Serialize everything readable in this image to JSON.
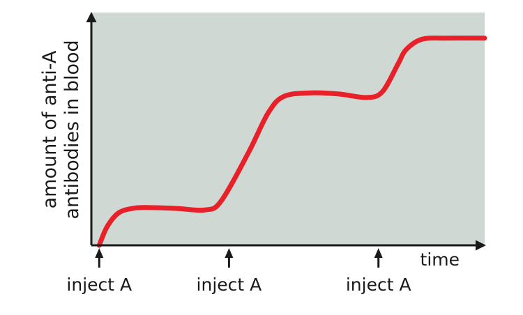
{
  "colors": {
    "plot_bg": "#cfd8d3",
    "curve": "#e8202a",
    "axis": "#1a1a1a",
    "text": "#1a1a1a"
  },
  "chart_data": {
    "type": "line",
    "title": "",
    "xlabel": "time",
    "ylabel_lines": [
      "amount of anti-A",
      "antibodies in blood"
    ],
    "x_ticks_shown": false,
    "y_ticks_shown": false,
    "grid": false,
    "xlim": [
      0,
      100
    ],
    "ylim": [
      0,
      100
    ],
    "series": [
      {
        "values_xy": [
          [
            2,
            0
          ],
          [
            4,
            8
          ],
          [
            7,
            14
          ],
          [
            11,
            16
          ],
          [
            15,
            16.2
          ],
          [
            22,
            15.8
          ],
          [
            29,
            15.2
          ],
          [
            33,
            19
          ],
          [
            40,
            40
          ],
          [
            45,
            57
          ],
          [
            49,
            64
          ],
          [
            56,
            65.5
          ],
          [
            63,
            65
          ],
          [
            70,
            63.5
          ],
          [
            74,
            66
          ],
          [
            78,
            78
          ],
          [
            80,
            84
          ],
          [
            84,
            88.5
          ],
          [
            90,
            89
          ],
          [
            100,
            89
          ]
        ]
      }
    ],
    "annotations": [
      {
        "label": "inject A",
        "x": 2
      },
      {
        "label": "inject A",
        "x": 35
      },
      {
        "label": "inject A",
        "x": 73
      }
    ]
  }
}
